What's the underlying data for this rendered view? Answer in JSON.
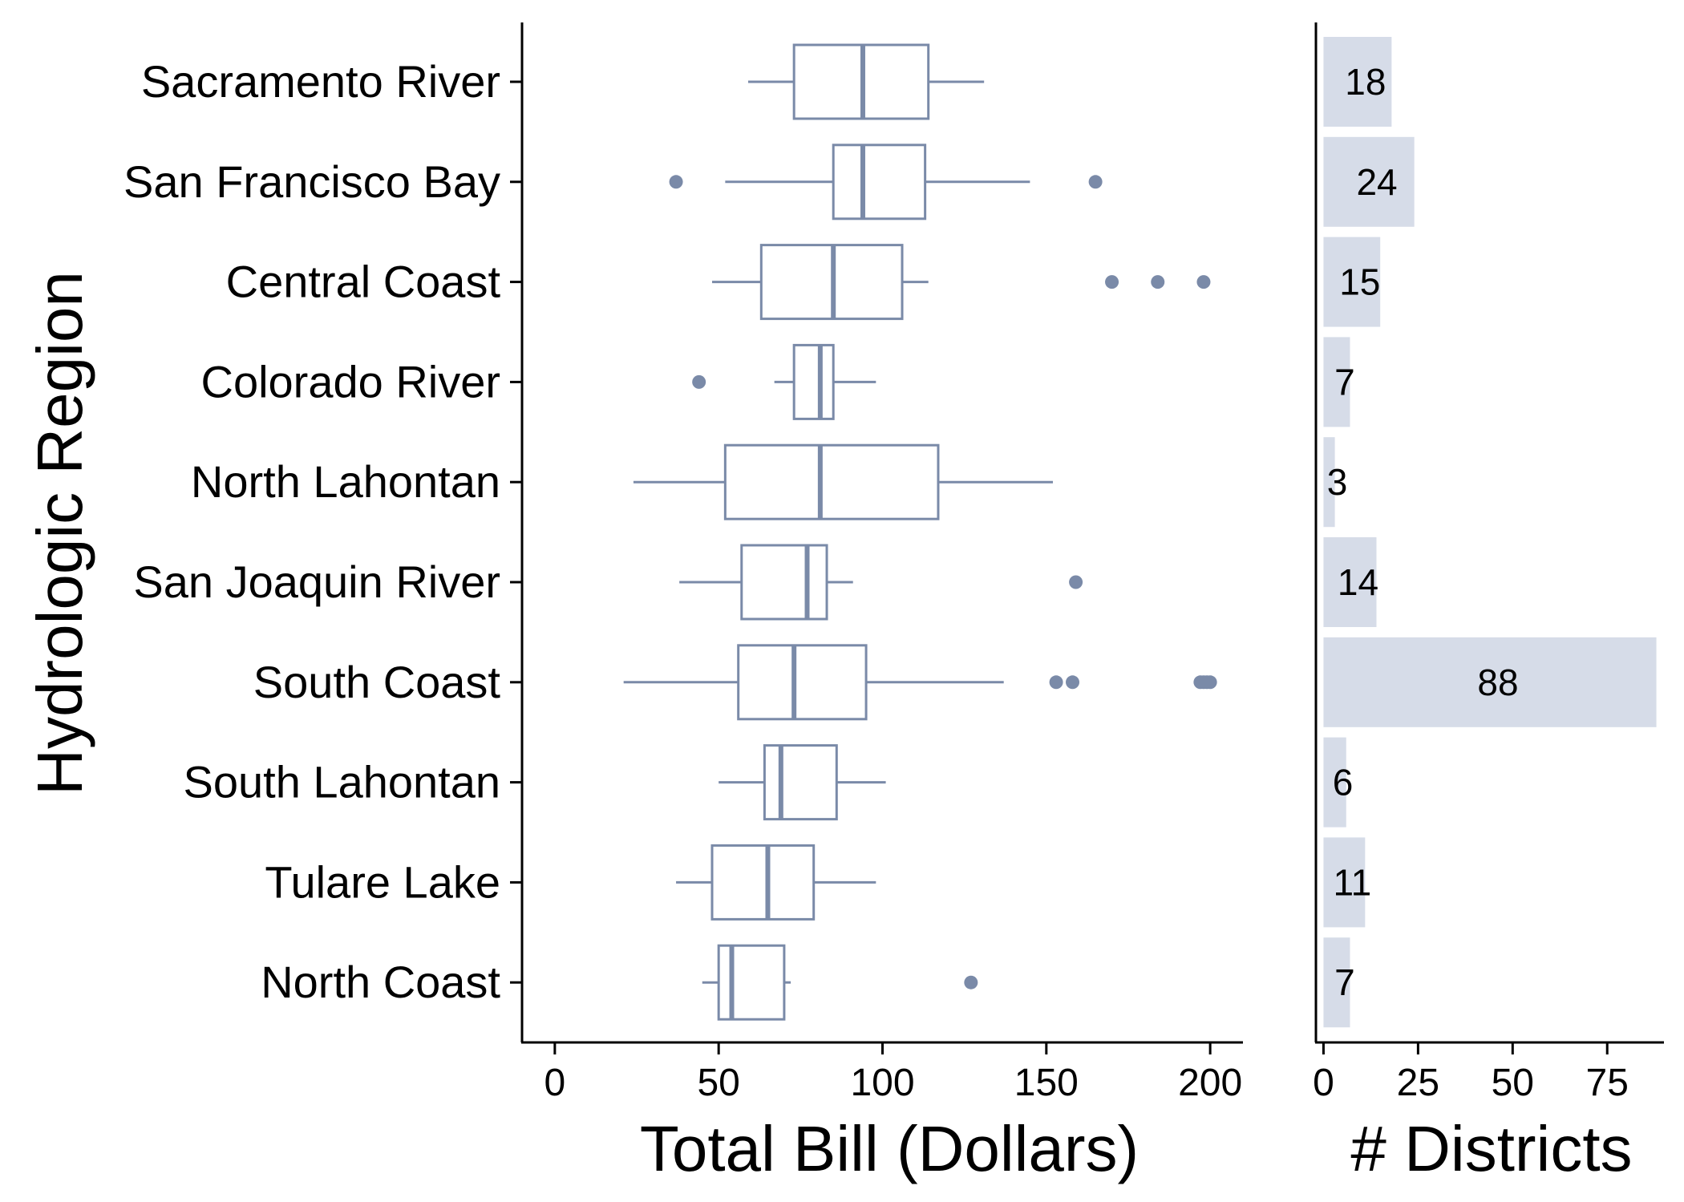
{
  "chart_data": {
    "type": "boxplot",
    "ylabel": "Hydrologic Region",
    "categories": [
      "Sacramento River",
      "San Francisco Bay",
      "Central Coast",
      "Colorado River",
      "North Lahontan",
      "San Joaquin River",
      "South Coast",
      "South Lahontan",
      "Tulare Lake",
      "North Coast"
    ],
    "panels": [
      {
        "name": "box",
        "type": "boxplot",
        "xlabel": "Total Bill (Dollars)",
        "xlim": [
          -10,
          210
        ],
        "xticks": [
          0,
          50,
          100,
          150,
          200
        ],
        "xtick_labels": [
          "0",
          "50",
          "100",
          "150",
          "200"
        ],
        "boxes": [
          {
            "category": "Sacramento River",
            "whisker_low": 59,
            "q1": 73,
            "median": 94,
            "q3": 114,
            "whisker_high": 131,
            "outliers": []
          },
          {
            "category": "San Francisco Bay",
            "whisker_low": 52,
            "q1": 85,
            "median": 94,
            "q3": 113,
            "whisker_high": 145,
            "outliers": [
              37,
              165
            ]
          },
          {
            "category": "Central Coast",
            "whisker_low": 48,
            "q1": 63,
            "median": 85,
            "q3": 106,
            "whisker_high": 114,
            "outliers": [
              170,
              184,
              198
            ]
          },
          {
            "category": "Colorado River",
            "whisker_low": 67,
            "q1": 73,
            "median": 81,
            "q3": 85,
            "whisker_high": 98,
            "outliers": [
              44
            ]
          },
          {
            "category": "North Lahontan",
            "whisker_low": 24,
            "q1": 52,
            "median": 81,
            "q3": 117,
            "whisker_high": 152,
            "outliers": []
          },
          {
            "category": "San Joaquin River",
            "whisker_low": 38,
            "q1": 57,
            "median": 77,
            "q3": 83,
            "whisker_high": 91,
            "outliers": [
              159
            ]
          },
          {
            "category": "South Coast",
            "whisker_low": 21,
            "q1": 56,
            "median": 73,
            "q3": 95,
            "whisker_high": 137,
            "outliers": [
              153,
              158,
              197,
              198,
              199,
              200
            ]
          },
          {
            "category": "South Lahontan",
            "whisker_low": 50,
            "q1": 64,
            "median": 69,
            "q3": 86,
            "whisker_high": 101,
            "outliers": []
          },
          {
            "category": "Tulare Lake",
            "whisker_low": 37,
            "q1": 48,
            "median": 65,
            "q3": 79,
            "whisker_high": 98,
            "outliers": []
          },
          {
            "category": "North Coast",
            "whisker_low": 45,
            "q1": 50,
            "median": 54,
            "q3": 70,
            "whisker_high": 72,
            "outliers": [
              127
            ]
          }
        ]
      },
      {
        "name": "bar",
        "type": "bar",
        "xlabel": "# Districts",
        "xlim": [
          -2,
          90
        ],
        "xticks": [
          0,
          25,
          50,
          75
        ],
        "xtick_labels": [
          "0",
          "25",
          "50",
          "75"
        ],
        "values": [
          18,
          24,
          15,
          7,
          3,
          14,
          88,
          6,
          11,
          7
        ],
        "value_labels": [
          "18",
          "24",
          "15",
          "7",
          "3",
          "14",
          "88",
          "6",
          "11",
          "7"
        ]
      }
    ],
    "colors": {
      "box_stroke": "#7a8aa8",
      "outlier": "#7a8aa8",
      "bar_fill": "#d6dce8",
      "axis": "#000000"
    }
  }
}
